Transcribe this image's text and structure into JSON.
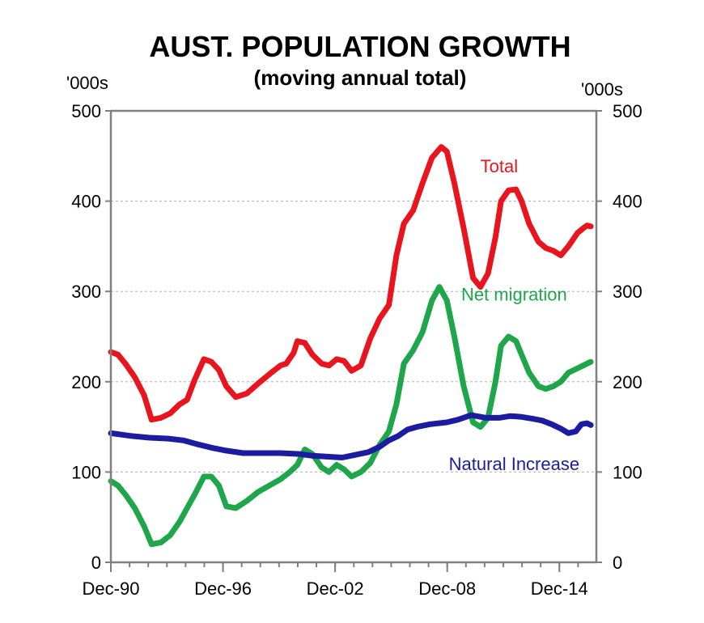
{
  "chart_data": {
    "type": "line",
    "title": "AUST. POPULATION GROWTH",
    "subtitle": "(moving annual total)",
    "ylabel_left": "'000s",
    "ylabel_right": "'000s",
    "ylim": [
      0,
      500
    ],
    "xlim": [
      1990.92,
      2016.9
    ],
    "y_ticks": [
      0,
      100,
      200,
      300,
      400,
      500
    ],
    "y_tick_labels": [
      "0",
      "100",
      "200",
      "300",
      "400",
      "500"
    ],
    "x_tick_labels": [
      "Dec-90",
      "Dec-96",
      "Dec-02",
      "Dec-08",
      "Dec-14"
    ],
    "x_tick_values": [
      1990.92,
      1996.92,
      2002.92,
      2008.92,
      2014.92
    ],
    "grid": true,
    "colors": {
      "Total": "#e8141e",
      "Net migration": "#1fa64a",
      "Natural Increase": "#1c1ca0"
    },
    "series": [
      {
        "name": "Total",
        "x": [
          1990.92,
          1991.3,
          1991.7,
          1992.2,
          1992.7,
          1993.1,
          1993.6,
          1994.1,
          1994.6,
          1995.0,
          1995.4,
          1995.9,
          1996.3,
          1996.7,
          1997.1,
          1997.6,
          1998.2,
          1998.8,
          1999.5,
          2000.0,
          2000.3,
          2000.7,
          2000.9,
          2001.3,
          2001.7,
          2002.2,
          2002.6,
          2003.0,
          2003.4,
          2003.8,
          2004.3,
          2004.8,
          2005.3,
          2005.8,
          2006.2,
          2006.6,
          2007.1,
          2007.6,
          2008.1,
          2008.6,
          2008.9,
          2009.3,
          2009.8,
          2010.3,
          2010.7,
          2011.1,
          2011.5,
          2011.8,
          2012.2,
          2012.6,
          2012.9,
          2013.3,
          2013.8,
          2014.2,
          2014.6,
          2015.0,
          2015.4,
          2015.9,
          2016.2,
          2016.4,
          2016.6
        ],
        "y": [
          233,
          230,
          220,
          205,
          185,
          158,
          160,
          165,
          175,
          180,
          202,
          225,
          222,
          213,
          195,
          183,
          187,
          198,
          210,
          218,
          220,
          232,
          245,
          243,
          230,
          220,
          218,
          225,
          223,
          212,
          218,
          248,
          270,
          285,
          340,
          375,
          390,
          420,
          448,
          460,
          455,
          420,
          370,
          315,
          305,
          320,
          360,
          400,
          412,
          413,
          400,
          375,
          355,
          348,
          345,
          340,
          350,
          365,
          370,
          373,
          372
        ]
      },
      {
        "name": "Net migration",
        "x": [
          1990.92,
          1991.3,
          1991.7,
          1992.2,
          1992.7,
          1993.1,
          1993.6,
          1994.1,
          1994.6,
          1995.0,
          1995.4,
          1995.9,
          1996.3,
          1996.7,
          1997.1,
          1997.6,
          1998.2,
          1998.8,
          1999.4,
          2000.0,
          2000.5,
          2000.9,
          2001.3,
          2001.7,
          2002.2,
          2002.6,
          2003.0,
          2003.4,
          2003.8,
          2004.3,
          2004.8,
          2005.3,
          2005.8,
          2006.2,
          2006.6,
          2007.1,
          2007.6,
          2008.1,
          2008.5,
          2008.9,
          2009.3,
          2009.8,
          2010.3,
          2010.7,
          2011.1,
          2011.5,
          2011.8,
          2012.2,
          2012.6,
          2012.9,
          2013.3,
          2013.8,
          2014.2,
          2014.6,
          2015.0,
          2015.4,
          2015.9,
          2016.2,
          2016.6
        ],
        "y": [
          90,
          85,
          75,
          60,
          40,
          20,
          22,
          30,
          45,
          60,
          75,
          95,
          95,
          85,
          62,
          60,
          68,
          78,
          85,
          92,
          100,
          108,
          125,
          120,
          105,
          100,
          108,
          103,
          95,
          100,
          110,
          130,
          145,
          175,
          220,
          235,
          255,
          290,
          305,
          290,
          250,
          195,
          155,
          150,
          160,
          200,
          240,
          250,
          245,
          230,
          210,
          195,
          192,
          195,
          200,
          210,
          215,
          218,
          222
        ]
      },
      {
        "name": "Natural Increase",
        "x": [
          1990.92,
          1992.0,
          1993.0,
          1994.0,
          1994.8,
          1995.5,
          1996.3,
          1997.0,
          1998.0,
          1999.0,
          2000.0,
          2001.0,
          2001.7,
          2002.5,
          2003.3,
          2004.0,
          2004.7,
          2005.3,
          2005.8,
          2006.3,
          2006.8,
          2007.3,
          2008.0,
          2008.9,
          2009.5,
          2010.2,
          2011.0,
          2011.7,
          2012.3,
          2012.9,
          2013.5,
          2014.0,
          2014.5,
          2015.0,
          2015.4,
          2015.8,
          2016.1,
          2016.4,
          2016.6
        ],
        "y": [
          143,
          140,
          138,
          137,
          135,
          131,
          127,
          124,
          121,
          121,
          121,
          120,
          118,
          117,
          116,
          119,
          122,
          128,
          135,
          140,
          147,
          150,
          153,
          155,
          158,
          163,
          160,
          160,
          162,
          161,
          159,
          157,
          153,
          148,
          143,
          145,
          153,
          154,
          152
        ]
      }
    ],
    "annotations": [
      {
        "text": "Total",
        "series": "Total"
      },
      {
        "text": "Net migration",
        "series": "Net migration"
      },
      {
        "text": "Natural Increase",
        "series": "Natural Increase"
      }
    ]
  }
}
